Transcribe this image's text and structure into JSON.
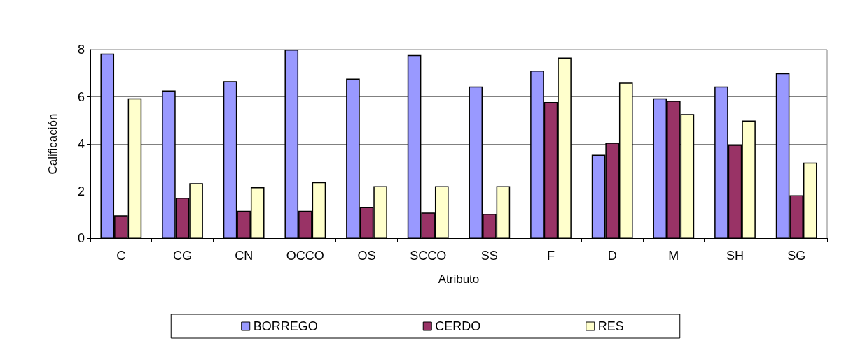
{
  "chart_data": {
    "type": "bar",
    "xlabel": "Atributo",
    "ylabel": "Calificación",
    "categories": [
      "C",
      "CG",
      "CN",
      "OCCO",
      "OS",
      "SCCO",
      "SS",
      "F",
      "D",
      "M",
      "SH",
      "SG"
    ],
    "series": [
      {
        "name": "BORREGO",
        "color": "#9999ff",
        "values": [
          7.83,
          6.27,
          6.66,
          8,
          6.77,
          7.77,
          6.44,
          7.11,
          3.54,
          5.93,
          6.44,
          7.0
        ]
      },
      {
        "name": "CERDO",
        "color": "#993366",
        "values": [
          0.97,
          1.72,
          1.16,
          1.16,
          1.32,
          1.09,
          1.04,
          5.78,
          4.05,
          5.83,
          3.96,
          1.82
        ]
      },
      {
        "name": "RES",
        "color": "#ffffcc",
        "values": [
          5.93,
          2.33,
          2.16,
          2.38,
          2.21,
          2.21,
          2.21,
          7.66,
          6.6,
          5.27,
          4.99,
          3.21
        ]
      }
    ],
    "ylim": [
      0,
      8
    ],
    "yticks": [
      0,
      2,
      4,
      6,
      8
    ],
    "grid": "y",
    "legend": "bottom"
  }
}
